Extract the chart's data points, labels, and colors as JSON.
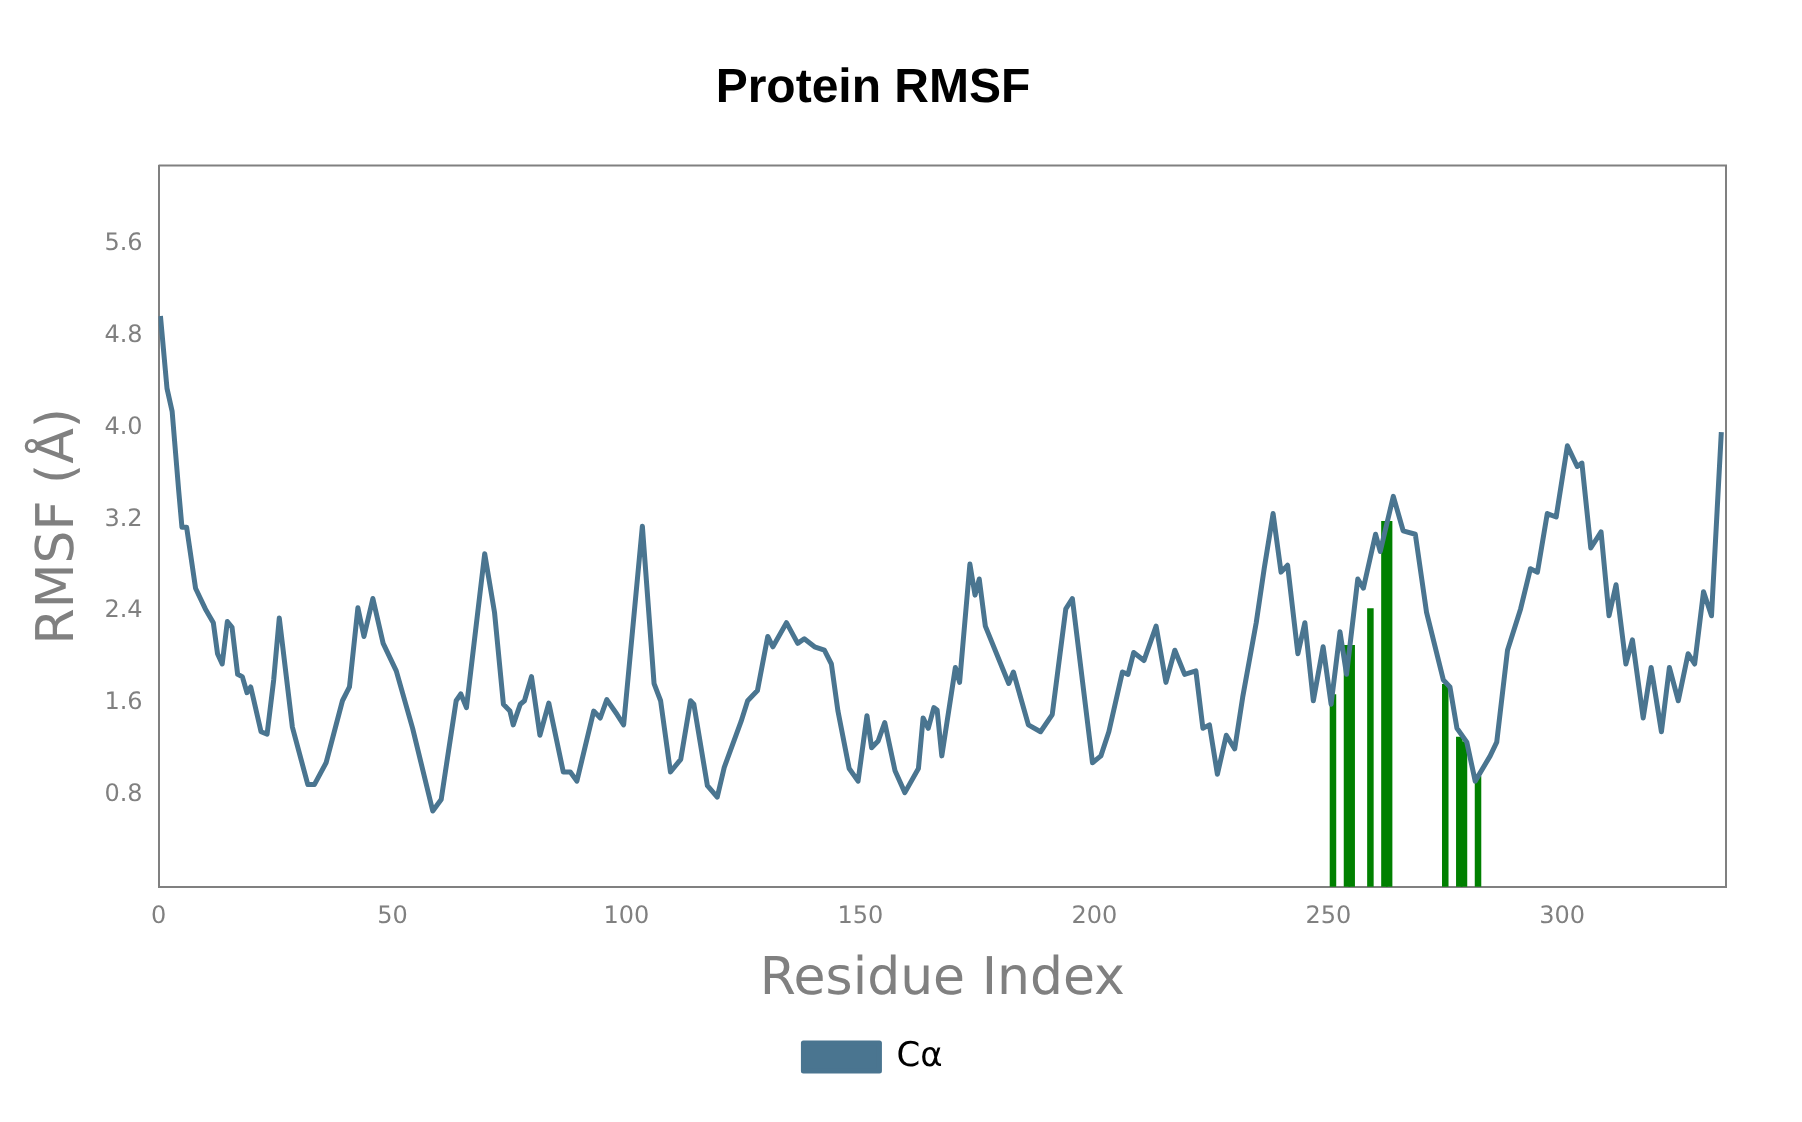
{
  "chart_data": {
    "type": "line",
    "title": "Protein RMSF",
    "xlabel": "Residue Index",
    "ylabel": "RMSF (Å)",
    "xlim": [
      0,
      335
    ],
    "xticks": [
      0,
      50,
      100,
      150,
      200,
      250,
      300
    ],
    "ylim": [
      0,
      6.28
    ],
    "yticks": [
      0.8,
      1.6,
      2.4,
      3.2,
      {
        "value": 4,
        "label": "4.0"
      },
      4.8,
      5.6
    ],
    "grid": false,
    "legend": "bottom",
    "series": [
      {
        "name": "Cα",
        "color": "#4a7590",
        "x": [
          0.4,
          1.8,
          2.9,
          4.3,
          5,
          6,
          7.9,
          10,
          11.7,
          12.6,
          13.6,
          14.7,
          15.7,
          16.9,
          17.9,
          18.9,
          19.7,
          21.9,
          23.2,
          24.6,
          25.8,
          28.6,
          31.9,
          33.3,
          35.8,
          39.3,
          40.8,
          42.6,
          43.9,
          45.8,
          48,
          50.8,
          54.3,
          58.6,
          60.4,
          63.6,
          64.6,
          65.8,
          69.7,
          71.8,
          73.7,
          75.1,
          75.8,
          77.3,
          78.2,
          79.7,
          81.5,
          83.4,
          86.5,
          88,
          89.4,
          93,
          94.4,
          95.8,
          98,
          99.4,
          103.4,
          105.9,
          107.3,
          109.4,
          111.6,
          113.7,
          114.4,
          117.3,
          119.4,
          120.9,
          124.5,
          125.9,
          128,
          130.2,
          131.3,
          134.2,
          136.6,
          138,
          140.2,
          142.3,
          143.8,
          145.2,
          147.6,
          149.5,
          151.4,
          152.4,
          153.8,
          155.2,
          157.4,
          159.5,
          162.4,
          163.4,
          164.5,
          165.7,
          166.4,
          167.4,
          170.3,
          171.2,
          173.4,
          174.5,
          175.4,
          176.7,
          180.3,
          181.7,
          182.7,
          185.9,
          188.5,
          191,
          193.9,
          195.3,
          199.6,
          201.4,
          203.1,
          206,
          207.2,
          208.4,
          210.6,
          213.2,
          215.3,
          217.2,
          219.3,
          221.7,
          223.2,
          224.6,
          226.3,
          228.2,
          230,
          231.7,
          234.6,
          236.3,
          238.2,
          239.9,
          241.3,
          243.5,
          245,
          246.8,
          248.9,
          250.6,
          252.5,
          253.9,
          256.3,
          257.5,
          260.1,
          261.1,
          263.9,
          266,
          268.6,
          271,
          274.6,
          276,
          277.5,
          279.6,
          281.4,
          284.6,
          286,
          288.3,
          291.1,
          293.2,
          294.7,
          296.8,
          298.7,
          301.1,
          303.2,
          304.2,
          306.1,
          308.3,
          310,
          311.5,
          313.6,
          315,
          317.3,
          319,
          321.2,
          322.9,
          324.8,
          326.9,
          328.3,
          330.2,
          331.9,
          334
        ],
        "values": [
          4.97,
          4.34,
          4.14,
          3.45,
          3.13,
          3.13,
          2.6,
          2.42,
          2.3,
          2.03,
          1.94,
          2.31,
          2.26,
          1.85,
          1.83,
          1.69,
          1.74,
          1.35,
          1.33,
          1.8,
          2.34,
          1.39,
          0.89,
          0.89,
          1.08,
          1.62,
          1.74,
          2.43,
          2.18,
          2.51,
          2.12,
          1.88,
          1.38,
          0.66,
          0.76,
          1.62,
          1.68,
          1.56,
          2.9,
          2.39,
          1.59,
          1.53,
          1.41,
          1.59,
          1.62,
          1.83,
          1.32,
          1.6,
          1.0,
          1.0,
          0.92,
          1.53,
          1.47,
          1.63,
          1.5,
          1.41,
          3.14,
          1.77,
          1.62,
          1.0,
          1.11,
          1.62,
          1.59,
          0.88,
          0.78,
          1.04,
          1.44,
          1.62,
          1.71,
          2.18,
          2.09,
          2.3,
          2.12,
          2.16,
          2.09,
          2.06,
          1.94,
          1.53,
          1.03,
          0.92,
          1.49,
          1.21,
          1.27,
          1.43,
          1.01,
          0.82,
          1.03,
          1.47,
          1.38,
          1.56,
          1.54,
          1.14,
          1.91,
          1.78,
          2.81,
          2.54,
          2.68,
          2.27,
          1.91,
          1.77,
          1.87,
          1.41,
          1.35,
          1.5,
          2.42,
          2.51,
          1.08,
          1.14,
          1.35,
          1.87,
          1.85,
          2.04,
          1.97,
          2.27,
          1.78,
          2.06,
          1.85,
          1.88,
          1.38,
          1.41,
          0.98,
          1.32,
          1.2,
          1.65,
          2.3,
          2.77,
          3.25,
          2.74,
          2.8,
          2.03,
          2.3,
          1.62,
          2.09,
          1.59,
          2.22,
          1.85,
          2.68,
          2.6,
          3.07,
          2.92,
          3.4,
          3.1,
          3.07,
          2.39,
          1.8,
          1.74,
          1.38,
          1.26,
          0.92,
          1.14,
          1.26,
          2.06,
          2.42,
          2.77,
          2.74,
          3.25,
          3.22,
          3.84,
          3.66,
          3.69,
          2.95,
          3.09,
          2.36,
          2.63,
          1.94,
          2.15,
          1.47,
          1.91,
          1.35,
          1.91,
          1.62,
          2.03,
          1.94,
          2.57,
          2.36,
          3.96
        ]
      },
      {
        "type": "bar",
        "color": "#008000",
        "x": [
          251,
          254,
          255,
          259,
          262,
          263,
          275,
          278,
          279,
          282
        ],
        "values": [
          1.67,
          2.1,
          2.1,
          2.42,
          3.18,
          3.18,
          1.76,
          1.3,
          1.26,
          0.96
        ]
      }
    ]
  }
}
